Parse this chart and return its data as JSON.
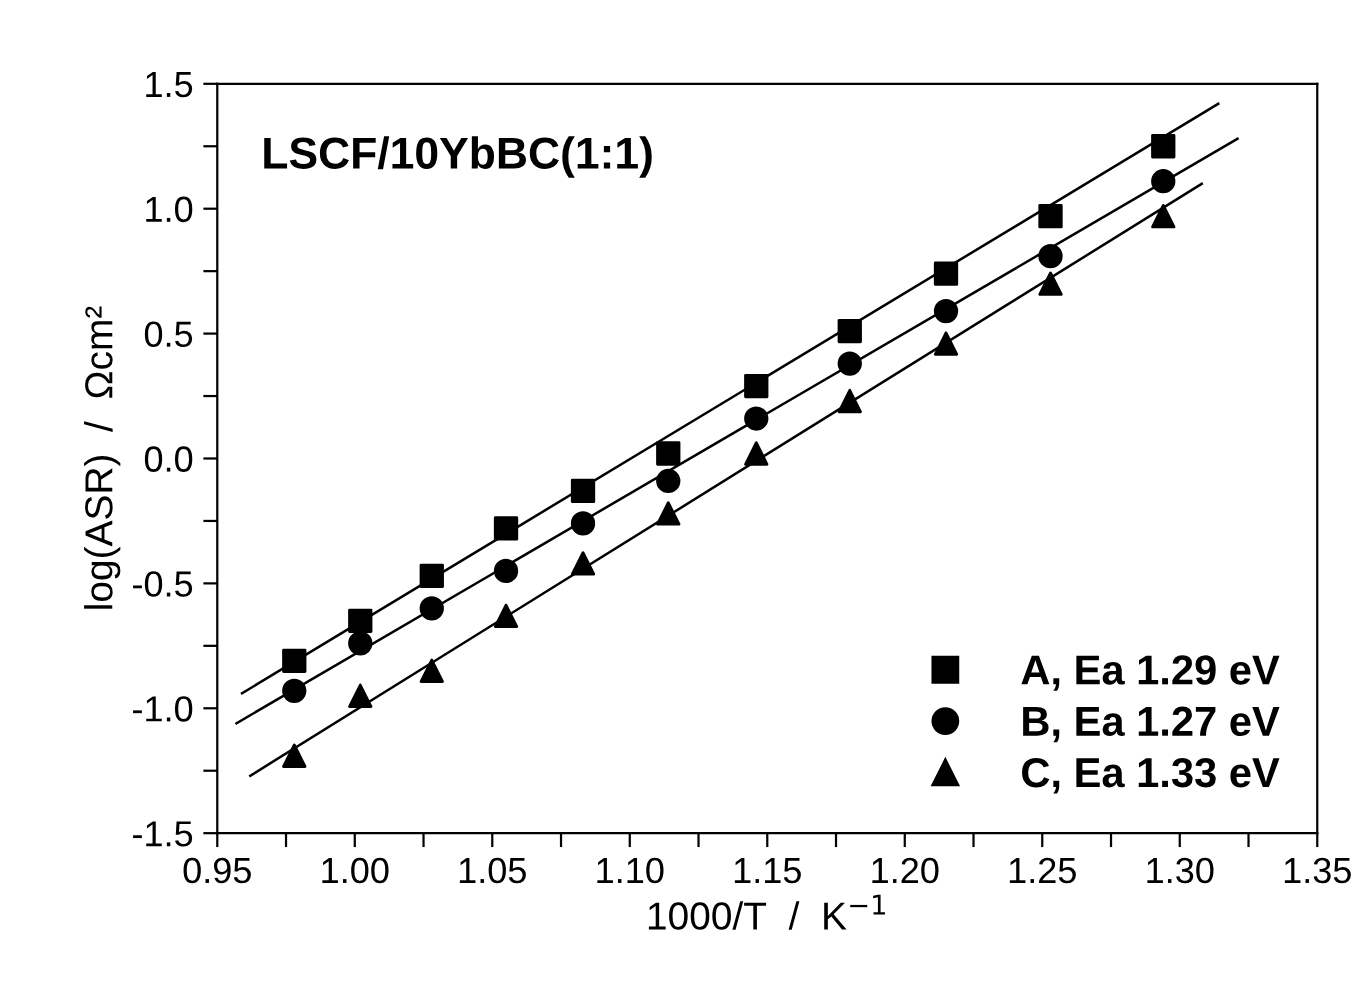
{
  "chart_data": {
    "type": "scatter",
    "xlabel": "1000/T  /  K$^{−1}$",
    "ylabel": "log(ASR)  /  Ωcm²",
    "annotations": [
      "LSCF/10YbBC(1:1)"
    ],
    "x": [
      0.978,
      1.002,
      1.028,
      1.055,
      1.083,
      1.114,
      1.146,
      1.18,
      1.215,
      1.253,
      1.294
    ],
    "series": [
      {
        "name": "A, Ea 1.29 eV",
        "color": "#000000",
        "marker": "square",
        "values": [
          -0.81,
          -0.65,
          -0.47,
          -0.28,
          -0.13,
          0.02,
          0.29,
          0.51,
          0.74,
          0.97,
          1.25
        ]
      },
      {
        "name": "B, Ea 1.27 eV",
        "color": "#000000",
        "marker": "circle",
        "values": [
          -0.93,
          -0.74,
          -0.6,
          -0.45,
          -0.26,
          -0.09,
          0.16,
          0.38,
          0.59,
          0.81,
          1.11
        ]
      },
      {
        "name": "C, Ea 1.33 eV",
        "color": "#000000",
        "marker": "triangle",
        "values": [
          -1.19,
          -0.95,
          -0.85,
          -0.63,
          -0.42,
          -0.22,
          0.02,
          0.23,
          0.46,
          0.7,
          0.97
        ]
      },
      {
        "type": "line",
        "color": "#000000",
        "x": [
          0.959,
          1.314
        ],
        "values": [
          -0.94,
          1.42
        ]
      },
      {
        "type": "line",
        "color": "#000000",
        "x": [
          0.957,
          1.321
        ],
        "values": [
          -1.06,
          1.28
        ]
      },
      {
        "type": "line",
        "color": "#000000",
        "x": [
          0.962,
          1.308
        ],
        "values": [
          -1.27,
          1.1
        ]
      }
    ],
    "xlim": [
      0.95,
      1.35
    ],
    "ylim": [
      -1.5,
      1.5
    ],
    "xticks": [
      0.95,
      {
        "value": 0.975,
        "label": null
      },
      {
        "value": 1.0,
        "label": "1.00"
      },
      {
        "value": 1.025,
        "label": null
      },
      1.05,
      {
        "value": 1.075,
        "label": null
      },
      {
        "value": 1.1,
        "label": "1.10"
      },
      {
        "value": 1.125,
        "label": null
      },
      1.15,
      {
        "value": 1.175,
        "label": null
      },
      {
        "value": 1.2,
        "label": "1.20"
      },
      {
        "value": 1.225,
        "label": null
      },
      1.25,
      {
        "value": 1.275,
        "label": null
      },
      {
        "value": 1.3,
        "label": "1.30"
      },
      {
        "value": 1.325,
        "label": null
      },
      1.35
    ],
    "yticks": [
      -1.5,
      {
        "value": -1.25,
        "label": null
      },
      {
        "value": -1.0,
        "label": "-1.0"
      },
      {
        "value": -0.75,
        "label": null
      },
      -0.5,
      {
        "value": -0.25,
        "label": null
      },
      {
        "value": 0.0,
        "label": "0.0"
      },
      {
        "value": 0.25,
        "label": null
      },
      0.5,
      {
        "value": 0.75,
        "label": null
      },
      {
        "value": 1.0,
        "label": "1.0"
      },
      {
        "value": 1.25,
        "label": null
      },
      1.5
    ],
    "grid": false,
    "legend": "bottom right"
  }
}
